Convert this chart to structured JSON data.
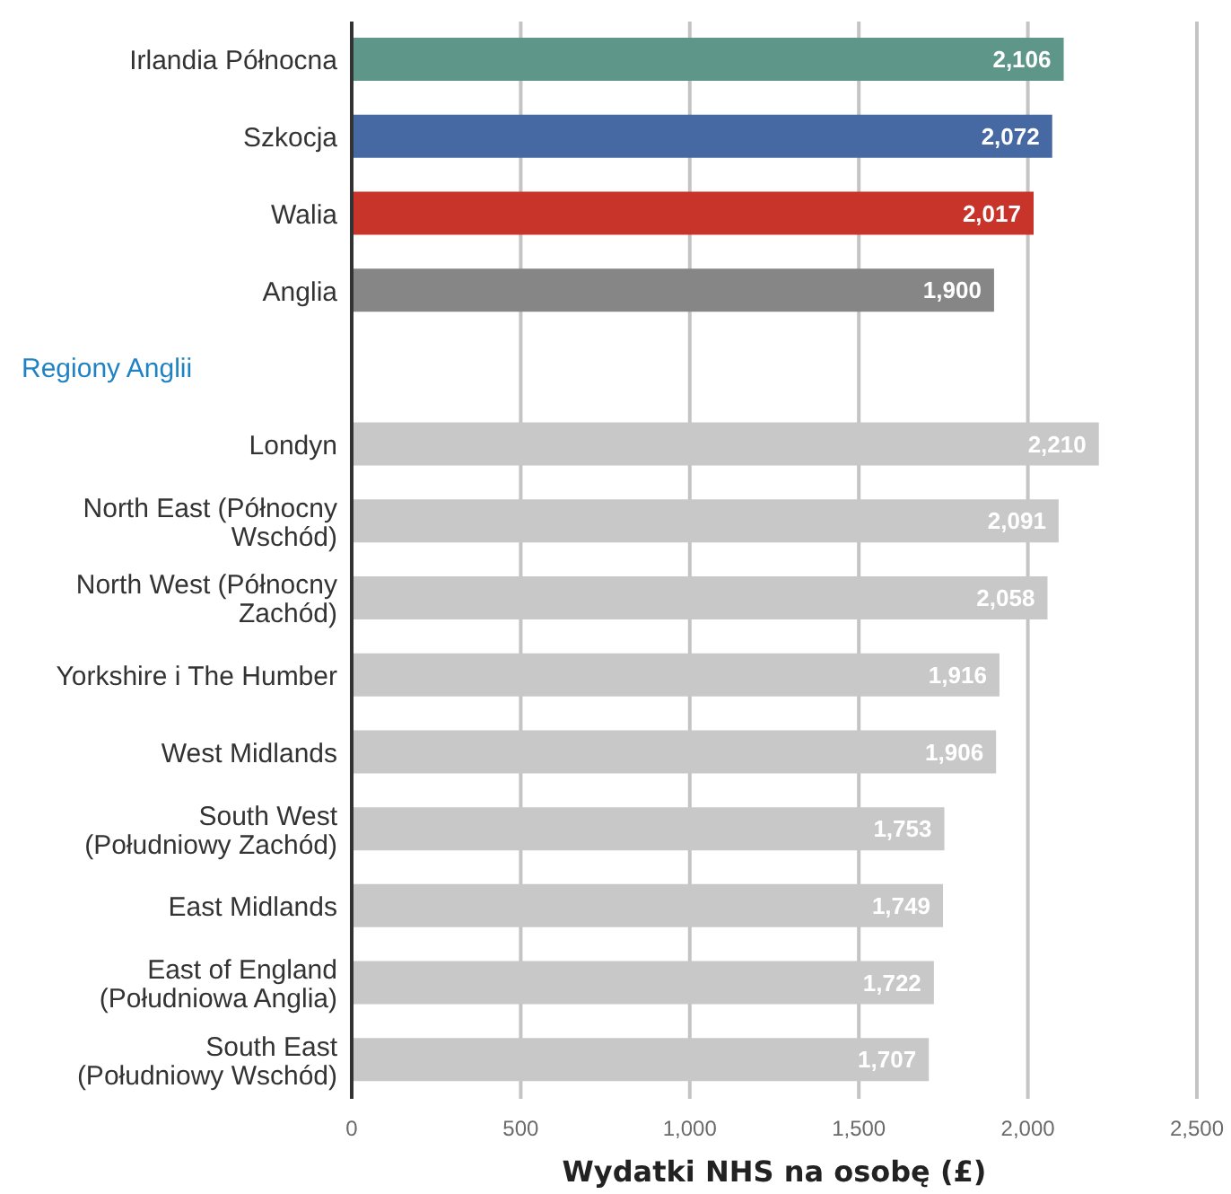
{
  "chart_data": {
    "type": "bar",
    "orientation": "horizontal",
    "categories": [
      "Irlandia Północna",
      "Szkocja",
      "Walia",
      "Anglia",
      null,
      "Londyn",
      "North East (Północny\nWschód)",
      "North West (Północny\nZachód)",
      "Yorkshire i The Humber",
      "West Midlands",
      "South West\n(Południowy Zachód)",
      "East Midlands",
      "East of England\n(Południowa Anglia)",
      "South East\n(Południowy Wschód)"
    ],
    "values": [
      2106,
      2072,
      2017,
      1900,
      null,
      2210,
      2091,
      2058,
      1916,
      1906,
      1753,
      1749,
      1722,
      1707
    ],
    "colors": [
      "#5e968a",
      "#4669a3",
      "#c8342a",
      "#868686",
      null,
      "#c8c8c8",
      "#c8c8c8",
      "#c8c8c8",
      "#c8c8c8",
      "#c8c8c8",
      "#c8c8c8",
      "#c8c8c8",
      "#c8c8c8",
      "#c8c8c8"
    ],
    "value_labels": [
      "2,106",
      "2,072",
      "2,017",
      "1,900",
      null,
      "2,210",
      "2,091",
      "2,058",
      "1,916",
      "1,906",
      "1,753",
      "1,749",
      "1,722",
      "1,707"
    ],
    "annotations": [
      "Regiony Anglii"
    ],
    "xlabel": "Wydatki NHS na osobę (£)",
    "xlim": [
      0,
      2500
    ],
    "xticks": [
      0,
      500,
      {
        "value": 1000,
        "label": "1,000"
      },
      {
        "value": 1500,
        "label": "1,500"
      },
      {
        "value": 2000,
        "label": "2,000"
      },
      {
        "value": 2500,
        "label": "2,500"
      }
    ],
    "grid": "x"
  }
}
